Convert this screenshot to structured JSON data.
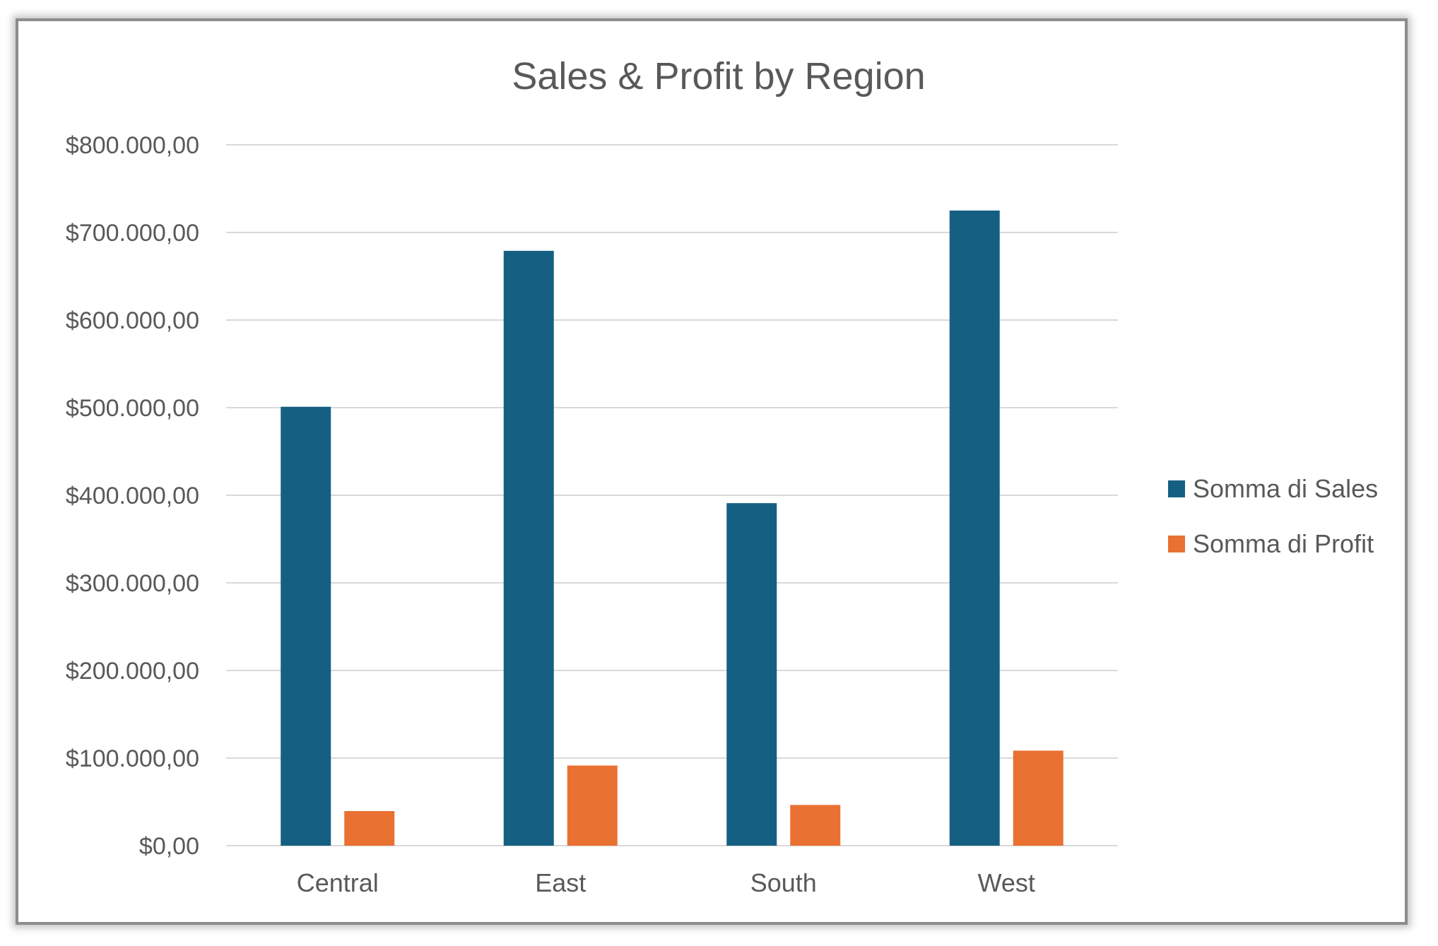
{
  "chart_data": {
    "type": "bar",
    "title": "Sales & Profit by Region",
    "xlabel": "",
    "ylabel": "",
    "categories": [
      "Central",
      "East",
      "South",
      "West"
    ],
    "series": [
      {
        "name": "Somma di Sales",
        "values": [
          501000,
          679000,
          391000,
          725000
        ],
        "color": "#156082"
      },
      {
        "name": "Somma di Profit",
        "values": [
          39500,
          91500,
          46500,
          108500
        ],
        "color": "#E97132"
      }
    ],
    "ylim": [
      0,
      800000
    ],
    "yticks": [
      0,
      100000,
      200000,
      300000,
      400000,
      500000,
      600000,
      700000,
      800000
    ],
    "ytick_labels": [
      "$0,00",
      "$100.000,00",
      "$200.000,00",
      "$300.000,00",
      "$400.000,00",
      "$500.000,00",
      "$600.000,00",
      "$700.000,00",
      "$800.000,00"
    ],
    "grid": true,
    "legend_position": "right"
  }
}
